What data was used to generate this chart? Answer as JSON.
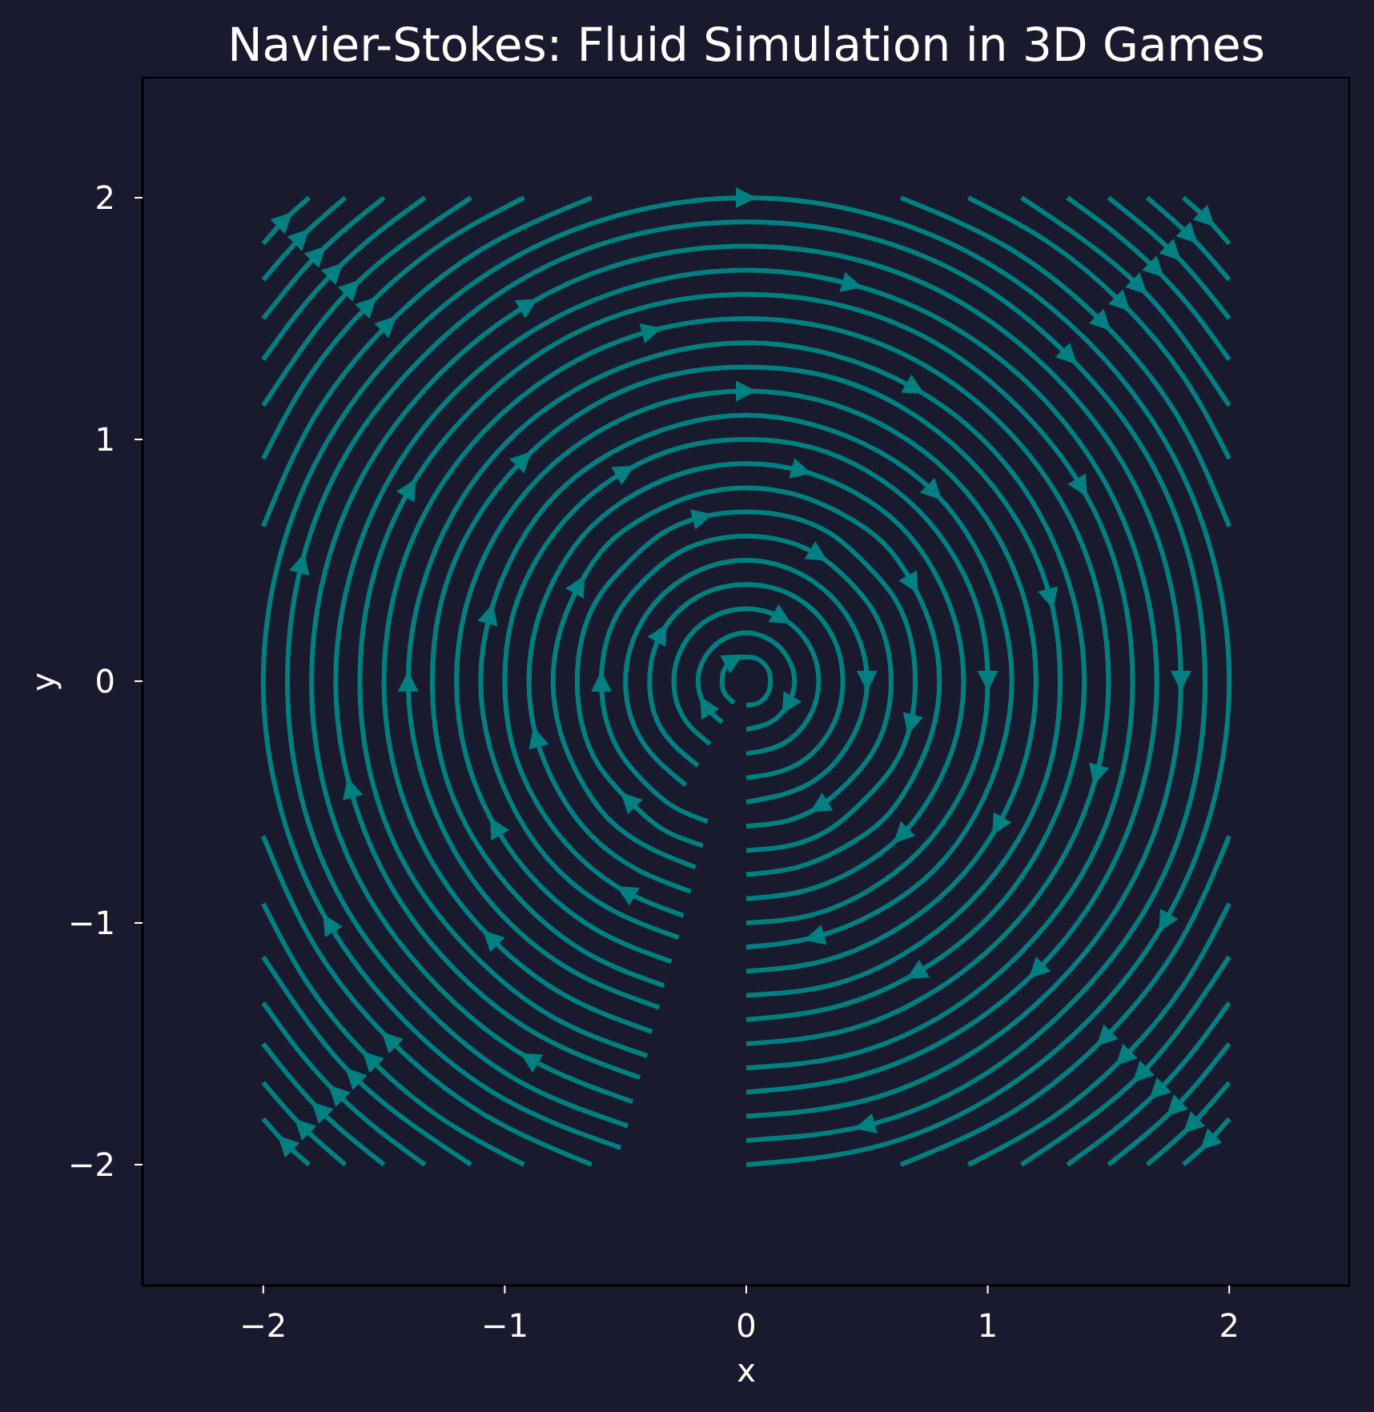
{
  "chart_data": {
    "type": "line",
    "title": "Navier-Stokes: Fluid Simulation in 3D Games",
    "xlabel": "x",
    "ylabel": "y",
    "xlim": [
      -2.5,
      2.5
    ],
    "ylim": [
      -2.5,
      2.5
    ],
    "xticks": [
      {
        "value": -2,
        "label": "−2"
      },
      {
        "value": -1,
        "label": "−1"
      },
      0,
      1,
      2
    ],
    "yticks": [
      {
        "value": -2,
        "label": "−2"
      },
      {
        "value": -1,
        "label": "−1"
      },
      0,
      1,
      2
    ],
    "series": [
      {
        "color": "#008080",
        "x": [
          -0.05,
          -0.09,
          -0.1,
          -0.09,
          -0.05,
          0,
          0.05,
          0.09,
          0.1,
          0.09,
          0.05,
          0
        ],
        "values": [
          -0.09,
          -0.05,
          0,
          0.05,
          0.09,
          0.1,
          0.09,
          0.05,
          0,
          -0.05,
          -0.09,
          -0.1
        ]
      },
      {
        "color": "#008080",
        "x": [
          -0.1,
          -0.17,
          -0.2,
          -0.17,
          -0.1,
          0,
          0.1,
          0.17,
          0.2,
          0.17,
          0.1,
          0
        ],
        "values": [
          -0.17,
          -0.1,
          0,
          0.1,
          0.17,
          0.2,
          0.17,
          0.1,
          0,
          -0.1,
          -0.17,
          -0.2
        ]
      },
      {
        "color": "#008080",
        "x": [
          -0.15,
          -0.26,
          -0.3,
          -0.26,
          -0.15,
          0,
          0.15,
          0.26,
          0.3,
          0.26,
          0.15,
          0
        ],
        "values": [
          -0.26,
          -0.15,
          0,
          0.15,
          0.26,
          0.3,
          0.26,
          0.15,
          0,
          -0.15,
          -0.26,
          -0.3
        ]
      },
      {
        "color": "#008080",
        "x": [
          -0.2,
          -0.35,
          -0.4,
          -0.35,
          -0.2,
          0,
          0.2,
          0.35,
          0.4,
          0.35,
          0.2,
          0
        ],
        "values": [
          -0.35,
          -0.2,
          0,
          0.2,
          0.35,
          0.4,
          0.35,
          0.2,
          0,
          -0.2,
          -0.35,
          -0.4
        ]
      },
      {
        "color": "#008080",
        "x": [
          -0.25,
          -0.43,
          -0.5,
          -0.43,
          -0.25,
          0,
          0.25,
          0.43,
          0.5,
          0.43,
          0.25,
          0
        ],
        "values": [
          -0.43,
          -0.25,
          0,
          0.25,
          0.43,
          0.5,
          0.43,
          0.25,
          0,
          -0.25,
          -0.43,
          -0.5
        ]
      },
      {
        "color": "#008080",
        "x": [
          -0.16,
          -0.3,
          -0.42,
          -0.52,
          -0.58,
          -0.6,
          -0.58,
          -0.52,
          -0.42,
          -0.3,
          -0.16,
          0,
          0.16,
          0.3,
          0.42,
          0.52,
          0.58,
          0.6,
          0.58,
          0.52,
          0.42,
          0.3,
          0.16,
          0
        ],
        "values": [
          -0.58,
          -0.52,
          -0.42,
          -0.3,
          -0.16,
          0,
          0.16,
          0.3,
          0.42,
          0.52,
          0.58,
          0.6,
          0.58,
          0.52,
          0.42,
          0.3,
          0.16,
          0,
          -0.16,
          -0.3,
          -0.42,
          -0.52,
          -0.58,
          -0.6
        ]
      },
      {
        "color": "#008080",
        "x": [
          -0.18,
          -0.35,
          -0.49,
          -0.61,
          -0.68,
          -0.7,
          -0.68,
          -0.61,
          -0.49,
          -0.35,
          -0.18,
          0,
          0.18,
          0.35,
          0.49,
          0.61,
          0.68,
          0.7,
          0.68,
          0.61,
          0.49,
          0.35,
          0.18,
          0
        ],
        "values": [
          -0.68,
          -0.61,
          -0.49,
          -0.35,
          -0.18,
          0,
          0.18,
          0.35,
          0.49,
          0.61,
          0.68,
          0.7,
          0.68,
          0.61,
          0.49,
          0.35,
          0.18,
          0,
          -0.18,
          -0.35,
          -0.49,
          -0.61,
          -0.68,
          -0.7
        ]
      },
      {
        "color": "#008080",
        "x": [
          -0.21,
          -0.4,
          -0.57,
          -0.69,
          -0.77,
          -0.8,
          -0.77,
          -0.69,
          -0.57,
          -0.4,
          -0.21,
          0,
          0.21,
          0.4,
          0.57,
          0.69,
          0.77,
          0.8,
          0.77,
          0.69,
          0.57,
          0.4,
          0.21,
          0
        ],
        "values": [
          -0.77,
          -0.69,
          -0.57,
          -0.4,
          -0.21,
          0,
          0.21,
          0.4,
          0.57,
          0.69,
          0.77,
          0.8,
          0.77,
          0.69,
          0.57,
          0.4,
          0.21,
          0,
          -0.21,
          -0.4,
          -0.57,
          -0.69,
          -0.77,
          -0.8
        ]
      },
      {
        "color": "#008080",
        "x": [
          -0.23,
          -0.45,
          -0.64,
          -0.78,
          -0.87,
          -0.9,
          -0.87,
          -0.78,
          -0.64,
          -0.45,
          -0.23,
          0,
          0.23,
          0.45,
          0.64,
          0.78,
          0.87,
          0.9,
          0.87,
          0.78,
          0.64,
          0.45,
          0.23,
          0
        ],
        "values": [
          -0.87,
          -0.78,
          -0.64,
          -0.45,
          -0.23,
          0,
          0.23,
          0.45,
          0.64,
          0.78,
          0.87,
          0.9,
          0.87,
          0.78,
          0.64,
          0.45,
          0.23,
          0,
          -0.23,
          -0.45,
          -0.64,
          -0.78,
          -0.87,
          -0.9
        ]
      },
      {
        "color": "#008080",
        "x": [
          -0.26,
          -0.5,
          -0.71,
          -0.87,
          -0.97,
          -1,
          -0.97,
          -0.87,
          -0.71,
          -0.5,
          -0.26,
          0,
          0.26,
          0.5,
          0.71,
          0.87,
          0.97,
          1,
          0.97,
          0.87,
          0.71,
          0.5,
          0.26,
          0
        ],
        "values": [
          -0.97,
          -0.87,
          -0.71,
          -0.5,
          -0.26,
          0,
          0.26,
          0.5,
          0.71,
          0.87,
          0.97,
          1,
          0.97,
          0.87,
          0.71,
          0.5,
          0.26,
          0,
          -0.26,
          -0.5,
          -0.71,
          -0.87,
          -0.97,
          -1
        ]
      },
      {
        "color": "#008080",
        "x": [
          -0.28,
          -0.55,
          -0.78,
          -0.95,
          -1.06,
          -1.1,
          -1.06,
          -0.95,
          -0.78,
          -0.55,
          -0.28,
          0,
          0.28,
          0.55,
          0.78,
          0.95,
          1.06,
          1.1,
          1.06,
          0.95,
          0.78,
          0.55,
          0.28,
          0
        ],
        "values": [
          -1.06,
          -0.95,
          -0.78,
          -0.55,
          -0.28,
          0,
          0.28,
          0.55,
          0.78,
          0.95,
          1.06,
          1.1,
          1.06,
          0.95,
          0.78,
          0.55,
          0.28,
          0,
          -0.28,
          -0.55,
          -0.78,
          -0.95,
          -1.06,
          -1.1
        ]
      },
      {
        "color": "#008080",
        "x": [
          -0.31,
          -0.6,
          -0.85,
          -1.04,
          -1.16,
          -1.2,
          -1.16,
          -1.04,
          -0.85,
          -0.6,
          -0.31,
          0,
          0.31,
          0.6,
          0.85,
          1.04,
          1.16,
          1.2,
          1.16,
          1.04,
          0.85,
          0.6,
          0.31,
          0
        ],
        "values": [
          -1.16,
          -1.04,
          -0.85,
          -0.6,
          -0.31,
          0,
          0.31,
          0.6,
          0.85,
          1.04,
          1.16,
          1.2,
          1.16,
          1.04,
          0.85,
          0.6,
          0.31,
          0,
          -0.31,
          -0.6,
          -0.85,
          -1.04,
          -1.16,
          -1.2
        ]
      },
      {
        "color": "#008080",
        "x": [
          -0.34,
          -0.65,
          -0.92,
          -1.13,
          -1.26,
          -1.3,
          -1.26,
          -1.13,
          -0.92,
          -0.65,
          -0.34,
          0,
          0.34,
          0.65,
          0.92,
          1.13,
          1.26,
          1.3,
          1.26,
          1.13,
          0.92,
          0.65,
          0.34,
          0
        ],
        "values": [
          -1.26,
          -1.13,
          -0.92,
          -0.65,
          -0.34,
          0,
          0.34,
          0.65,
          0.92,
          1.13,
          1.26,
          1.3,
          1.26,
          1.13,
          0.92,
          0.65,
          0.34,
          0,
          -0.34,
          -0.65,
          -0.92,
          -1.13,
          -1.26,
          -1.3
        ]
      },
      {
        "color": "#008080",
        "x": [
          -0.36,
          -0.7,
          -0.99,
          -1.21,
          -1.35,
          -1.4,
          -1.35,
          -1.21,
          -0.99,
          -0.7,
          -0.36,
          0,
          0.36,
          0.7,
          0.99,
          1.21,
          1.35,
          1.4,
          1.35,
          1.21,
          0.99,
          0.7,
          0.36,
          0
        ],
        "values": [
          -1.35,
          -1.21,
          -0.99,
          -0.7,
          -0.36,
          0,
          0.36,
          0.7,
          0.99,
          1.21,
          1.35,
          1.4,
          1.35,
          1.21,
          0.99,
          0.7,
          0.36,
          0,
          -0.36,
          -0.7,
          -0.99,
          -1.21,
          -1.35,
          -1.4
        ]
      },
      {
        "color": "#008080",
        "x": [
          -0.39,
          -0.75,
          -1.06,
          -1.3,
          -1.45,
          -1.5,
          -1.45,
          -1.3,
          -1.06,
          -0.75,
          -0.39,
          0,
          0.39,
          0.75,
          1.06,
          1.3,
          1.45,
          1.5,
          1.45,
          1.3,
          1.06,
          0.75,
          0.39,
          0
        ],
        "values": [
          -1.45,
          -1.3,
          -1.06,
          -0.75,
          -0.39,
          0,
          0.39,
          0.75,
          1.06,
          1.3,
          1.45,
          1.5,
          1.45,
          1.3,
          1.06,
          0.75,
          0.39,
          0,
          -0.39,
          -0.75,
          -1.06,
          -1.3,
          -1.45,
          -1.5
        ]
      },
      {
        "color": "#008080",
        "x": [
          -0.41,
          -0.8,
          -1.13,
          -1.39,
          -1.55,
          -1.6,
          -1.55,
          -1.39,
          -1.13,
          -0.8,
          -0.41,
          0,
          0.41,
          0.8,
          1.13,
          1.39,
          1.55,
          1.6,
          1.55,
          1.39,
          1.13,
          0.8,
          0.41,
          0
        ],
        "values": [
          -1.55,
          -1.39,
          -1.13,
          -0.8,
          -0.41,
          0,
          0.41,
          0.8,
          1.13,
          1.39,
          1.55,
          1.6,
          1.55,
          1.39,
          1.13,
          0.8,
          0.41,
          0,
          -0.41,
          -0.8,
          -1.13,
          -1.39,
          -1.55,
          -1.6
        ]
      },
      {
        "color": "#008080",
        "x": [
          -0.44,
          -0.85,
          -1.2,
          -1.47,
          -1.64,
          -1.7,
          -1.64,
          -1.47,
          -1.2,
          -0.85,
          -0.44,
          0,
          0.44,
          0.85,
          1.2,
          1.47,
          1.64,
          1.7,
          1.64,
          1.47,
          1.2,
          0.85,
          0.44,
          0
        ],
        "values": [
          -1.64,
          -1.47,
          -1.2,
          -0.85,
          -0.44,
          0,
          0.44,
          0.85,
          1.2,
          1.47,
          1.64,
          1.7,
          1.64,
          1.47,
          1.2,
          0.85,
          0.44,
          0,
          -0.44,
          -0.85,
          -1.2,
          -1.47,
          -1.64,
          -1.7
        ]
      },
      {
        "color": "#008080",
        "x": [
          -0.47,
          -0.9,
          -1.27,
          -1.56,
          -1.74,
          -1.8,
          -1.74,
          -1.56,
          -1.27,
          -0.9,
          -0.47,
          0,
          0.47,
          0.9,
          1.27,
          1.56,
          1.74,
          1.8,
          1.74,
          1.56,
          1.27,
          0.9,
          0.47,
          0
        ],
        "values": [
          -1.74,
          -1.56,
          -1.27,
          -0.9,
          -0.47,
          0,
          0.47,
          0.9,
          1.27,
          1.56,
          1.74,
          1.8,
          1.74,
          1.56,
          1.27,
          0.9,
          0.47,
          0,
          -0.47,
          -0.9,
          -1.27,
          -1.56,
          -1.74,
          -1.8
        ]
      },
      {
        "color": "#008080",
        "x": [
          -0.49,
          -0.95,
          -1.34,
          -1.65,
          -1.84,
          -1.9,
          -1.84,
          -1.65,
          -1.34,
          -0.95,
          -0.49,
          0,
          0.49,
          0.95,
          1.34,
          1.65,
          1.84,
          1.9,
          1.84,
          1.65,
          1.34,
          0.95,
          0.49,
          0
        ],
        "values": [
          -1.84,
          -1.65,
          -1.34,
          -0.95,
          -0.49,
          0,
          0.49,
          0.95,
          1.34,
          1.65,
          1.84,
          1.9,
          1.84,
          1.65,
          1.34,
          0.95,
          0.49,
          0,
          -0.49,
          -0.95,
          -1.34,
          -1.65,
          -1.84,
          -1.9
        ]
      },
      {
        "color": "#008080",
        "x": [
          -0.52,
          -1,
          -1.41,
          -1.73,
          -1.93,
          -2,
          -1.93,
          -1.73,
          -1.41,
          -1,
          -0.52,
          0,
          0.52,
          1,
          1.41,
          1.73,
          1.93,
          2,
          1.93,
          1.73,
          1.41,
          1,
          0.52,
          0
        ],
        "values": [
          -1.93,
          -1.73,
          -1.41,
          -1,
          -0.52,
          0,
          0.52,
          1,
          1.41,
          1.73,
          1.93,
          2,
          1.93,
          1.73,
          1.41,
          1,
          0.52,
          0,
          -0.52,
          -1,
          -1.41,
          -1.73,
          -1.93,
          -2
        ]
      },
      {
        "color": "#008080",
        "x": [
          0.64,
          1.09,
          1.48,
          1.79,
          2
        ],
        "values": [
          2,
          1.79,
          1.48,
          1.09,
          0.64
        ]
      },
      {
        "color": "#008080",
        "x": [
          2,
          1.79,
          1.48,
          1.09,
          0.64
        ],
        "values": [
          -0.64,
          -1.09,
          -1.48,
          -1.79,
          -2
        ]
      },
      {
        "color": "#008080",
        "x": [
          -0.64,
          -1.09,
          -1.48,
          -1.79,
          -2
        ],
        "values": [
          -2,
          -1.79,
          -1.48,
          -1.09,
          -0.64
        ]
      },
      {
        "color": "#008080",
        "x": [
          -2,
          -1.79,
          -1.48,
          -1.09,
          -0.64
        ],
        "values": [
          0.64,
          1.09,
          1.48,
          1.79,
          2
        ]
      },
      {
        "color": "#008080",
        "x": [
          0.92,
          1.26,
          1.56,
          1.81,
          2
        ],
        "values": [
          2,
          1.81,
          1.56,
          1.26,
          0.92
        ]
      },
      {
        "color": "#008080",
        "x": [
          2,
          1.81,
          1.56,
          1.26,
          0.92
        ],
        "values": [
          -0.92,
          -1.26,
          -1.56,
          -1.81,
          -2
        ]
      },
      {
        "color": "#008080",
        "x": [
          -0.92,
          -1.26,
          -1.56,
          -1.81,
          -2
        ],
        "values": [
          -2,
          -1.81,
          -1.56,
          -1.26,
          -0.92
        ]
      },
      {
        "color": "#008080",
        "x": [
          -2,
          -1.81,
          -1.56,
          -1.26,
          -0.92
        ],
        "values": [
          0.92,
          1.26,
          1.56,
          1.81,
          2
        ]
      },
      {
        "color": "#008080",
        "x": [
          1.14,
          1.39,
          1.63,
          1.83,
          2
        ],
        "values": [
          2,
          1.83,
          1.63,
          1.39,
          1.14
        ]
      },
      {
        "color": "#008080",
        "x": [
          2,
          1.83,
          1.63,
          1.39,
          1.14
        ],
        "values": [
          -1.14,
          -1.39,
          -1.63,
          -1.83,
          -2
        ]
      },
      {
        "color": "#008080",
        "x": [
          -1.14,
          -1.39,
          -1.63,
          -1.83,
          -2
        ],
        "values": [
          -2,
          -1.83,
          -1.63,
          -1.39,
          -1.14
        ]
      },
      {
        "color": "#008080",
        "x": [
          -2,
          -1.83,
          -1.63,
          -1.39,
          -1.14
        ],
        "values": [
          1.14,
          1.39,
          1.63,
          1.83,
          2
        ]
      },
      {
        "color": "#008080",
        "x": [
          1.33,
          1.52,
          1.7,
          1.86,
          2
        ],
        "values": [
          2,
          1.86,
          1.7,
          1.52,
          1.33
        ]
      },
      {
        "color": "#008080",
        "x": [
          2,
          1.86,
          1.7,
          1.52,
          1.33
        ],
        "values": [
          -1.33,
          -1.52,
          -1.7,
          -1.86,
          -2
        ]
      },
      {
        "color": "#008080",
        "x": [
          -1.33,
          -1.52,
          -1.7,
          -1.86,
          -2
        ],
        "values": [
          -2,
          -1.86,
          -1.7,
          -1.52,
          -1.33
        ]
      },
      {
        "color": "#008080",
        "x": [
          -2,
          -1.86,
          -1.7,
          -1.52,
          -1.33
        ],
        "values": [
          1.33,
          1.52,
          1.7,
          1.86,
          2
        ]
      },
      {
        "color": "#008080",
        "x": [
          1.5,
          1.77,
          2
        ],
        "values": [
          2,
          1.77,
          1.5
        ]
      },
      {
        "color": "#008080",
        "x": [
          2,
          1.77,
          1.5
        ],
        "values": [
          -1.5,
          -1.77,
          -2
        ]
      },
      {
        "color": "#008080",
        "x": [
          -1.5,
          -1.77,
          -2
        ],
        "values": [
          -2,
          -1.77,
          -1.5
        ]
      },
      {
        "color": "#008080",
        "x": [
          -2,
          -1.77,
          -1.5
        ],
        "values": [
          1.5,
          1.77,
          2
        ]
      },
      {
        "color": "#008080",
        "x": [
          1.66,
          1.84,
          2
        ],
        "values": [
          2,
          1.84,
          1.66
        ]
      },
      {
        "color": "#008080",
        "x": [
          2,
          1.84,
          1.66
        ],
        "values": [
          -1.66,
          -1.84,
          -2
        ]
      },
      {
        "color": "#008080",
        "x": [
          -1.66,
          -1.84,
          -2
        ],
        "values": [
          -2,
          -1.84,
          -1.66
        ]
      },
      {
        "color": "#008080",
        "x": [
          -2,
          -1.84,
          -1.66
        ],
        "values": [
          1.66,
          1.84,
          2
        ]
      },
      {
        "color": "#008080",
        "x": [
          1.81,
          1.91,
          2
        ],
        "values": [
          2,
          1.91,
          1.81
        ]
      },
      {
        "color": "#008080",
        "x": [
          2,
          1.91,
          1.81
        ],
        "values": [
          -1.81,
          -1.91,
          -2
        ]
      },
      {
        "color": "#008080",
        "x": [
          -1.81,
          -1.91,
          -2
        ],
        "values": [
          -2,
          -1.91,
          -1.81
        ]
      },
      {
        "color": "#008080",
        "x": [
          -2,
          -1.91,
          -1.81
        ],
        "values": [
          1.81,
          1.91,
          2
        ]
      }
    ]
  }
}
